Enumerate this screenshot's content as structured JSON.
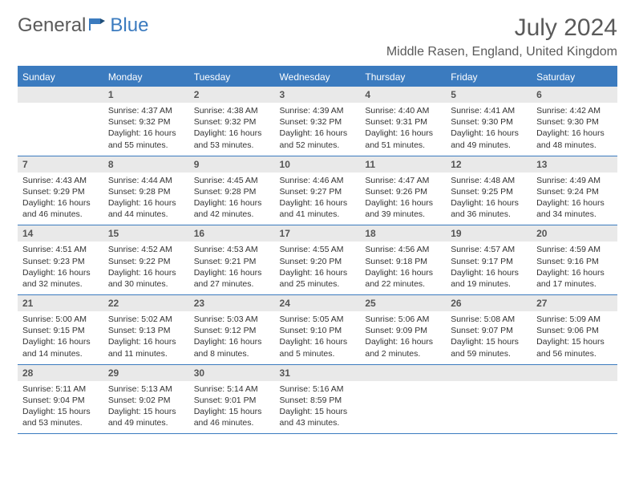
{
  "brand": {
    "part1": "General",
    "part2": "Blue"
  },
  "title": "July 2024",
  "location": "Middle Rasen, England, United Kingdom",
  "colors": {
    "accent": "#3b7bbf",
    "header_text": "#ffffff",
    "daynum_bg": "#e9e9e9",
    "daynum_text": "#555555",
    "body_text": "#333333",
    "title_text": "#5a5a5a"
  },
  "weekdays": [
    "Sunday",
    "Monday",
    "Tuesday",
    "Wednesday",
    "Thursday",
    "Friday",
    "Saturday"
  ],
  "start_offset": 1,
  "days": [
    {
      "n": 1,
      "sr": "4:37 AM",
      "ss": "9:32 PM",
      "dl": "16 hours and 55 minutes."
    },
    {
      "n": 2,
      "sr": "4:38 AM",
      "ss": "9:32 PM",
      "dl": "16 hours and 53 minutes."
    },
    {
      "n": 3,
      "sr": "4:39 AM",
      "ss": "9:32 PM",
      "dl": "16 hours and 52 minutes."
    },
    {
      "n": 4,
      "sr": "4:40 AM",
      "ss": "9:31 PM",
      "dl": "16 hours and 51 minutes."
    },
    {
      "n": 5,
      "sr": "4:41 AM",
      "ss": "9:30 PM",
      "dl": "16 hours and 49 minutes."
    },
    {
      "n": 6,
      "sr": "4:42 AM",
      "ss": "9:30 PM",
      "dl": "16 hours and 48 minutes."
    },
    {
      "n": 7,
      "sr": "4:43 AM",
      "ss": "9:29 PM",
      "dl": "16 hours and 46 minutes."
    },
    {
      "n": 8,
      "sr": "4:44 AM",
      "ss": "9:28 PM",
      "dl": "16 hours and 44 minutes."
    },
    {
      "n": 9,
      "sr": "4:45 AM",
      "ss": "9:28 PM",
      "dl": "16 hours and 42 minutes."
    },
    {
      "n": 10,
      "sr": "4:46 AM",
      "ss": "9:27 PM",
      "dl": "16 hours and 41 minutes."
    },
    {
      "n": 11,
      "sr": "4:47 AM",
      "ss": "9:26 PM",
      "dl": "16 hours and 39 minutes."
    },
    {
      "n": 12,
      "sr": "4:48 AM",
      "ss": "9:25 PM",
      "dl": "16 hours and 36 minutes."
    },
    {
      "n": 13,
      "sr": "4:49 AM",
      "ss": "9:24 PM",
      "dl": "16 hours and 34 minutes."
    },
    {
      "n": 14,
      "sr": "4:51 AM",
      "ss": "9:23 PM",
      "dl": "16 hours and 32 minutes."
    },
    {
      "n": 15,
      "sr": "4:52 AM",
      "ss": "9:22 PM",
      "dl": "16 hours and 30 minutes."
    },
    {
      "n": 16,
      "sr": "4:53 AM",
      "ss": "9:21 PM",
      "dl": "16 hours and 27 minutes."
    },
    {
      "n": 17,
      "sr": "4:55 AM",
      "ss": "9:20 PM",
      "dl": "16 hours and 25 minutes."
    },
    {
      "n": 18,
      "sr": "4:56 AM",
      "ss": "9:18 PM",
      "dl": "16 hours and 22 minutes."
    },
    {
      "n": 19,
      "sr": "4:57 AM",
      "ss": "9:17 PM",
      "dl": "16 hours and 19 minutes."
    },
    {
      "n": 20,
      "sr": "4:59 AM",
      "ss": "9:16 PM",
      "dl": "16 hours and 17 minutes."
    },
    {
      "n": 21,
      "sr": "5:00 AM",
      "ss": "9:15 PM",
      "dl": "16 hours and 14 minutes."
    },
    {
      "n": 22,
      "sr": "5:02 AM",
      "ss": "9:13 PM",
      "dl": "16 hours and 11 minutes."
    },
    {
      "n": 23,
      "sr": "5:03 AM",
      "ss": "9:12 PM",
      "dl": "16 hours and 8 minutes."
    },
    {
      "n": 24,
      "sr": "5:05 AM",
      "ss": "9:10 PM",
      "dl": "16 hours and 5 minutes."
    },
    {
      "n": 25,
      "sr": "5:06 AM",
      "ss": "9:09 PM",
      "dl": "16 hours and 2 minutes."
    },
    {
      "n": 26,
      "sr": "5:08 AM",
      "ss": "9:07 PM",
      "dl": "15 hours and 59 minutes."
    },
    {
      "n": 27,
      "sr": "5:09 AM",
      "ss": "9:06 PM",
      "dl": "15 hours and 56 minutes."
    },
    {
      "n": 28,
      "sr": "5:11 AM",
      "ss": "9:04 PM",
      "dl": "15 hours and 53 minutes."
    },
    {
      "n": 29,
      "sr": "5:13 AM",
      "ss": "9:02 PM",
      "dl": "15 hours and 49 minutes."
    },
    {
      "n": 30,
      "sr": "5:14 AM",
      "ss": "9:01 PM",
      "dl": "15 hours and 46 minutes."
    },
    {
      "n": 31,
      "sr": "5:16 AM",
      "ss": "8:59 PM",
      "dl": "15 hours and 43 minutes."
    }
  ],
  "labels": {
    "sunrise": "Sunrise:",
    "sunset": "Sunset:",
    "daylight": "Daylight:"
  }
}
